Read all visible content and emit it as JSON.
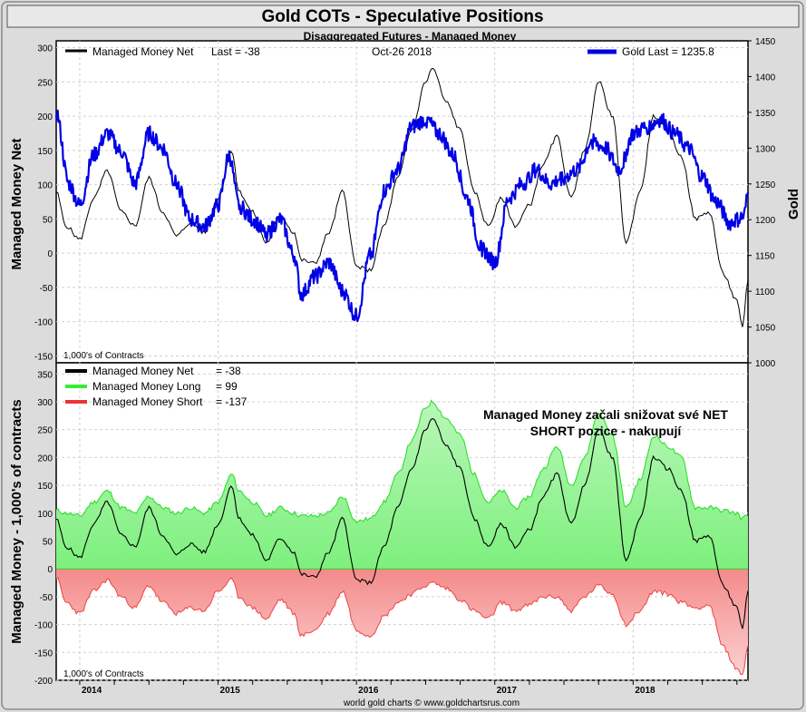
{
  "title": "Gold COTs - Speculative Positions",
  "subtitle": "Disaggregated Futures - Managed Money",
  "footer": "world gold charts © www.goldchartsrus.com",
  "colors": {
    "background": "#dcdcdc",
    "title_band": "#e8e8e8",
    "gold_line": "#0000e6",
    "net_line": "#000000",
    "long_fill": "#7df07d",
    "long_line": "#22dd22",
    "short_fill": "#f48a8a",
    "short_line": "#ee4444",
    "gridline": "#d0d0d0"
  },
  "chart_data": [
    {
      "type": "line",
      "panel": "top",
      "legend_left": {
        "label": "Managed Money Net",
        "last": "Last = -38"
      },
      "legend_date": "Oct-26  2018",
      "legend_right": {
        "label": "Gold Last = 1235.8"
      },
      "ylabel_left": "Managed Money Net",
      "ylabel_right": "Gold",
      "units_note": "1,000's of Contracts",
      "ylim_left": [
        -160,
        310
      ],
      "ylim_right": [
        1000,
        1450
      ],
      "yticks_left": [
        300,
        250,
        200,
        150,
        100,
        50,
        0,
        -50,
        -100,
        -150
      ],
      "yticks_right": [
        1450,
        1400,
        1350,
        1300,
        1250,
        1200,
        1150,
        1100,
        1050,
        1000
      ],
      "xlim": [
        2013.83,
        2018.83
      ],
      "grid": true,
      "series": [
        {
          "name": "Managed Money Net",
          "axis": "left",
          "x": [
            2013.83,
            2013.9,
            2014.0,
            2014.1,
            2014.2,
            2014.3,
            2014.4,
            2014.5,
            2014.6,
            2014.7,
            2014.8,
            2014.9,
            2015.0,
            2015.1,
            2015.15,
            2015.25,
            2015.35,
            2015.45,
            2015.55,
            2015.6,
            2015.7,
            2015.8,
            2015.9,
            2016.0,
            2016.1,
            2016.2,
            2016.3,
            2016.4,
            2016.5,
            2016.55,
            2016.65,
            2016.75,
            2016.85,
            2016.95,
            2017.05,
            2017.15,
            2017.25,
            2017.35,
            2017.45,
            2017.55,
            2017.65,
            2017.75,
            2017.85,
            2017.95,
            2018.05,
            2018.15,
            2018.25,
            2018.35,
            2018.45,
            2018.55,
            2018.65,
            2018.75,
            2018.79,
            2018.83
          ],
          "values": [
            90,
            40,
            20,
            80,
            120,
            60,
            40,
            110,
            60,
            25,
            45,
            30,
            80,
            150,
            90,
            60,
            15,
            55,
            30,
            -10,
            -15,
            30,
            90,
            -20,
            -25,
            40,
            110,
            180,
            250,
            270,
            220,
            180,
            90,
            40,
            80,
            40,
            70,
            130,
            170,
            80,
            150,
            250,
            200,
            15,
            90,
            200,
            180,
            140,
            50,
            60,
            -30,
            -70,
            -110,
            -38
          ]
        },
        {
          "name": "Gold",
          "axis": "right",
          "x": [
            2013.83,
            2013.92,
            2014.0,
            2014.1,
            2014.2,
            2014.3,
            2014.4,
            2014.5,
            2014.6,
            2014.7,
            2014.8,
            2014.9,
            2015.0,
            2015.08,
            2015.15,
            2015.25,
            2015.35,
            2015.45,
            2015.55,
            2015.6,
            2015.7,
            2015.8,
            2015.9,
            2016.0,
            2016.1,
            2016.2,
            2016.3,
            2016.4,
            2016.5,
            2016.6,
            2016.7,
            2016.8,
            2016.9,
            2017.0,
            2017.1,
            2017.2,
            2017.3,
            2017.4,
            2017.5,
            2017.6,
            2017.7,
            2017.8,
            2017.9,
            2018.0,
            2018.1,
            2018.2,
            2018.3,
            2018.4,
            2018.5,
            2018.6,
            2018.7,
            2018.75,
            2018.8,
            2018.83
          ],
          "values": [
            1350,
            1250,
            1220,
            1290,
            1320,
            1295,
            1250,
            1320,
            1300,
            1250,
            1200,
            1190,
            1220,
            1290,
            1220,
            1200,
            1180,
            1200,
            1150,
            1095,
            1120,
            1140,
            1100,
            1065,
            1150,
            1240,
            1270,
            1330,
            1340,
            1320,
            1290,
            1230,
            1160,
            1140,
            1230,
            1250,
            1270,
            1250,
            1260,
            1270,
            1310,
            1300,
            1270,
            1320,
            1330,
            1340,
            1320,
            1300,
            1260,
            1225,
            1195,
            1200,
            1205,
            1235.8
          ]
        }
      ]
    },
    {
      "type": "area",
      "panel": "bottom",
      "legend": [
        {
          "label": "Managed Money Net",
          "value": "= -38"
        },
        {
          "label": "Managed Money Long",
          "value": "= 99"
        },
        {
          "label": "Managed Money Short",
          "value": "= -137"
        }
      ],
      "annotation_line1": "Managed Money začali snižovat své NET",
      "annotation_line2": "SHORT pozice - nakupují",
      "ylabel": "Managed Money - 1,000's of contracts",
      "units_note": "1,000's of Contracts",
      "ylim": [
        -200,
        370
      ],
      "yticks": [
        350,
        300,
        250,
        200,
        150,
        100,
        50,
        0,
        -50,
        -100,
        -150,
        -200
      ],
      "xlim": [
        2013.83,
        2018.83
      ],
      "xticks": [
        "2014",
        "2015",
        "2016",
        "2017",
        "2018"
      ],
      "grid": true,
      "series": [
        {
          "name": "Managed Money Long",
          "x": [
            2013.83,
            2013.9,
            2014.0,
            2014.1,
            2014.2,
            2014.3,
            2014.4,
            2014.5,
            2014.6,
            2014.7,
            2014.8,
            2014.9,
            2015.0,
            2015.1,
            2015.15,
            2015.25,
            2015.35,
            2015.45,
            2015.55,
            2015.6,
            2015.7,
            2015.8,
            2015.9,
            2016.0,
            2016.1,
            2016.2,
            2016.3,
            2016.4,
            2016.5,
            2016.55,
            2016.65,
            2016.75,
            2016.85,
            2016.95,
            2017.05,
            2017.15,
            2017.25,
            2017.35,
            2017.45,
            2017.55,
            2017.65,
            2017.75,
            2017.85,
            2017.95,
            2018.05,
            2018.15,
            2018.25,
            2018.35,
            2018.45,
            2018.55,
            2018.65,
            2018.75,
            2018.79,
            2018.83
          ],
          "values": [
            105,
            100,
            95,
            120,
            140,
            110,
            100,
            130,
            110,
            100,
            110,
            100,
            120,
            170,
            140,
            120,
            95,
            110,
            100,
            95,
            95,
            100,
            130,
            85,
            90,
            120,
            170,
            230,
            290,
            300,
            270,
            240,
            170,
            120,
            140,
            110,
            130,
            180,
            220,
            150,
            200,
            280,
            240,
            110,
            160,
            240,
            220,
            200,
            110,
            110,
            105,
            100,
            90,
            99
          ]
        },
        {
          "name": "Managed Money Short",
          "x": [
            2013.83,
            2013.9,
            2014.0,
            2014.1,
            2014.2,
            2014.3,
            2014.4,
            2014.5,
            2014.6,
            2014.7,
            2014.8,
            2014.9,
            2015.0,
            2015.1,
            2015.15,
            2015.25,
            2015.35,
            2015.45,
            2015.55,
            2015.6,
            2015.7,
            2015.8,
            2015.9,
            2016.0,
            2016.1,
            2016.2,
            2016.3,
            2016.4,
            2016.5,
            2016.55,
            2016.65,
            2016.75,
            2016.85,
            2016.95,
            2017.05,
            2017.15,
            2017.25,
            2017.35,
            2017.45,
            2017.55,
            2017.65,
            2017.75,
            2017.85,
            2017.95,
            2018.05,
            2018.15,
            2018.25,
            2018.35,
            2018.45,
            2018.55,
            2018.65,
            2018.75,
            2018.79,
            2018.83
          ],
          "values": [
            -15,
            -60,
            -80,
            -40,
            -20,
            -50,
            -70,
            -30,
            -60,
            -80,
            -70,
            -75,
            -40,
            -20,
            -50,
            -70,
            -90,
            -55,
            -80,
            -120,
            -110,
            -80,
            -40,
            -110,
            -120,
            -85,
            -60,
            -45,
            -30,
            -25,
            -35,
            -55,
            -75,
            -90,
            -60,
            -75,
            -65,
            -50,
            -50,
            -75,
            -50,
            -30,
            -45,
            -100,
            -75,
            -40,
            -45,
            -60,
            -70,
            -65,
            -140,
            -180,
            -190,
            -137
          ]
        },
        {
          "name": "Managed Money Net",
          "x": [
            2013.83,
            2013.9,
            2014.0,
            2014.1,
            2014.2,
            2014.3,
            2014.4,
            2014.5,
            2014.6,
            2014.7,
            2014.8,
            2014.9,
            2015.0,
            2015.1,
            2015.15,
            2015.25,
            2015.35,
            2015.45,
            2015.55,
            2015.6,
            2015.7,
            2015.8,
            2015.9,
            2016.0,
            2016.1,
            2016.2,
            2016.3,
            2016.4,
            2016.5,
            2016.55,
            2016.65,
            2016.75,
            2016.85,
            2016.95,
            2017.05,
            2017.15,
            2017.25,
            2017.35,
            2017.45,
            2017.55,
            2017.65,
            2017.75,
            2017.85,
            2017.95,
            2018.05,
            2018.15,
            2018.25,
            2018.35,
            2018.45,
            2018.55,
            2018.65,
            2018.75,
            2018.79,
            2018.83
          ],
          "values": [
            90,
            40,
            20,
            80,
            120,
            60,
            40,
            110,
            60,
            25,
            45,
            30,
            80,
            150,
            90,
            60,
            15,
            55,
            30,
            -10,
            -15,
            30,
            90,
            -20,
            -25,
            40,
            110,
            180,
            250,
            270,
            220,
            180,
            90,
            40,
            80,
            40,
            70,
            130,
            170,
            80,
            150,
            250,
            200,
            15,
            90,
            200,
            180,
            140,
            50,
            60,
            -30,
            -70,
            -110,
            -38
          ]
        }
      ]
    }
  ]
}
